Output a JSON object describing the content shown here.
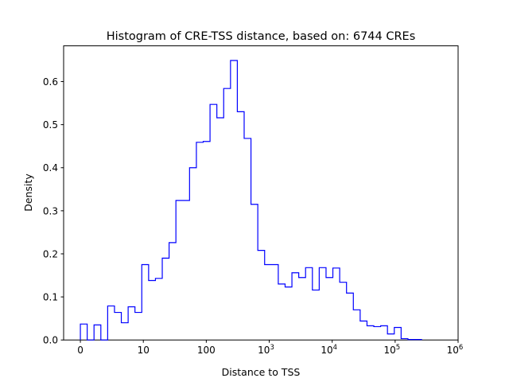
{
  "chart_data": {
    "type": "histogram-step",
    "title": "Histogram of CRE-TSS distance, based on: 6744 CREs",
    "xlabel": "Distance to TSS",
    "ylabel": "Density",
    "x_scale": "symlog",
    "x_linthresh": 10,
    "xlim": [
      -2.66,
      1000000
    ],
    "ylim": [
      0,
      0.683
    ],
    "bin_range": [
      0,
      263000
    ],
    "n_bins": 50,
    "values": [
      0.037,
      0,
      0.035,
      0,
      0.079,
      0.064,
      0.04,
      0.077,
      0.064,
      0.175,
      0.138,
      0.143,
      0.19,
      0.226,
      0.324,
      0.324,
      0.4,
      0.459,
      0.461,
      0.547,
      0.516,
      0.584,
      0.649,
      0.53,
      0.468,
      0.315,
      0.208,
      0.175,
      0.175,
      0.13,
      0.123,
      0.156,
      0.145,
      0.168,
      0.116,
      0.168,
      0.145,
      0.167,
      0.134,
      0.109,
      0.07,
      0.044,
      0.033,
      0.031,
      0.033,
      0.014,
      0.029,
      0.003,
      0.001,
      0.001
    ],
    "x_ticks": [
      {
        "value": 0,
        "label": "0",
        "exp": ""
      },
      {
        "value": 10,
        "label": "10",
        "exp": ""
      },
      {
        "value": 100,
        "label": "100",
        "exp": ""
      },
      {
        "value": 1000,
        "label": "10",
        "exp": "3"
      },
      {
        "value": 10000,
        "label": "10",
        "exp": "4"
      },
      {
        "value": 100000,
        "label": "10",
        "exp": "5"
      },
      {
        "value": 1000000,
        "label": "10",
        "exp": "6"
      }
    ],
    "y_ticks": [
      0.0,
      0.1,
      0.2,
      0.3,
      0.4,
      0.5,
      0.6
    ],
    "y_tick_labels": [
      "0.0",
      "0.1",
      "0.2",
      "0.3",
      "0.4",
      "0.5",
      "0.6"
    ],
    "grid": false,
    "line_color": "#0000ff"
  }
}
